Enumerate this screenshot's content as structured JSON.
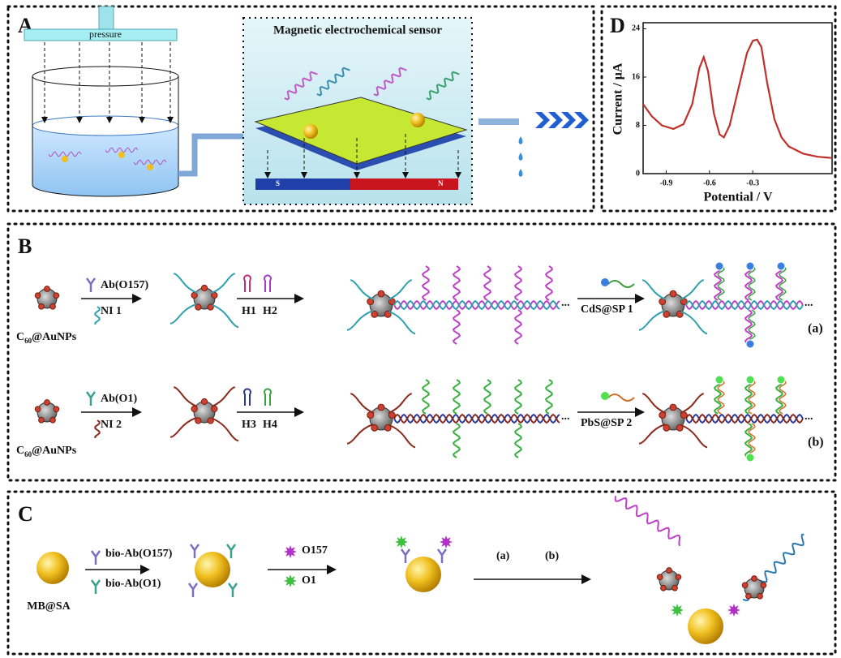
{
  "panel_a": {
    "label": "A",
    "pressure": "pressure",
    "sensor_title": "Magnetic electrochemical sensor",
    "magnet_s": "S",
    "magnet_n": "N"
  },
  "panel_d": {
    "label": "D",
    "type": "line",
    "x_label": "Potential / V",
    "y_label": "Current / μA",
    "x": [
      -1.06,
      -1.0,
      -0.93,
      -0.85,
      -0.78,
      -0.72,
      -0.67,
      -0.64,
      -0.61,
      -0.57,
      -0.53,
      -0.5,
      -0.46,
      -0.4,
      -0.34,
      -0.3,
      -0.27,
      -0.24,
      -0.2,
      -0.15,
      -0.1,
      -0.05,
      0.05,
      0.15,
      0.25
    ],
    "values": [
      11.5,
      9.5,
      8.0,
      7.4,
      8.2,
      11.5,
      17.5,
      19.3,
      17,
      10,
      6.5,
      6.0,
      8,
      14,
      20,
      22,
      22.2,
      21,
      15,
      9,
      6,
      4.5,
      3.3,
      2.8,
      2.6
    ],
    "color": "#c0302b",
    "xlim": [
      -1.06,
      0.25
    ],
    "xticks": [
      -0.9,
      -0.6,
      -0.3
    ],
    "ylim": [
      0,
      25
    ],
    "yticks": [
      0,
      8,
      16,
      24
    ]
  },
  "panel_b": {
    "label": "B",
    "rows": [
      {
        "particle": {
          "main": "C",
          "sub": "60",
          "rest": "@AuNPs"
        },
        "antibody": "Ab(O157)",
        "linker": "NI 1",
        "hairpin1": "H1",
        "hairpin2": "H2",
        "ellipsis1": "...",
        "probe": "CdS@SP 1",
        "ellipsis2": "...",
        "tag": "(a)"
      },
      {
        "particle": {
          "main": "C",
          "sub": "60",
          "rest": "@AuNPs"
        },
        "antibody": "Ab(O1)",
        "linker": "NI 2",
        "hairpin1": "H3",
        "hairpin2": "H4",
        "ellipsis1": "...",
        "probe": "PbS@SP 2",
        "ellipsis2": "...",
        "tag": "(b)"
      }
    ]
  },
  "panel_c": {
    "label": "C",
    "bead": "MB@SA",
    "antibody1": "bio-Ab(O157)",
    "antibody2": "bio-Ab(O1)",
    "target1": "O157",
    "target2": "O1",
    "step1": "(a)",
    "step2": "(b)"
  }
}
